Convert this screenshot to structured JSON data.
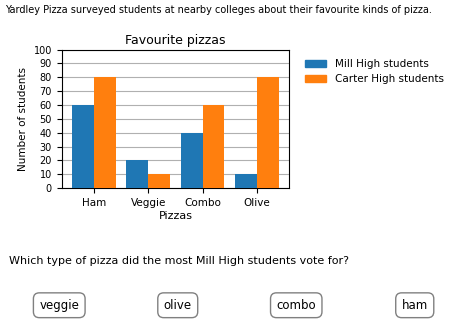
{
  "chart_data": {
    "type": "bar",
    "title": "Favourite pizzas",
    "subtitle": "Yardley Pizza surveyed students at nearby colleges about their favourite kinds of pizza.",
    "x_label": "Pizzas",
    "y_label": "Number of students",
    "categories": [
      "Ham",
      "Veggie",
      "Combo",
      "Olive"
    ],
    "series": [
      {
        "name": "Mill High students",
        "values": [
          60,
          20,
          40,
          10
        ]
      },
      {
        "name": "Carter High students",
        "values": [
          80,
          10,
          60,
          80
        ]
      }
    ],
    "ylim": [
      0,
      100
    ],
    "yticks": [
      0,
      10,
      20,
      30,
      40,
      50,
      60,
      70,
      80,
      90,
      100
    ],
    "grid": true,
    "legend": "upper left",
    "annotations": [
      "Which type of pizza did the most Mill High students vote for?",
      "veggie",
      "olive",
      "combo",
      "ham"
    ]
  }
}
